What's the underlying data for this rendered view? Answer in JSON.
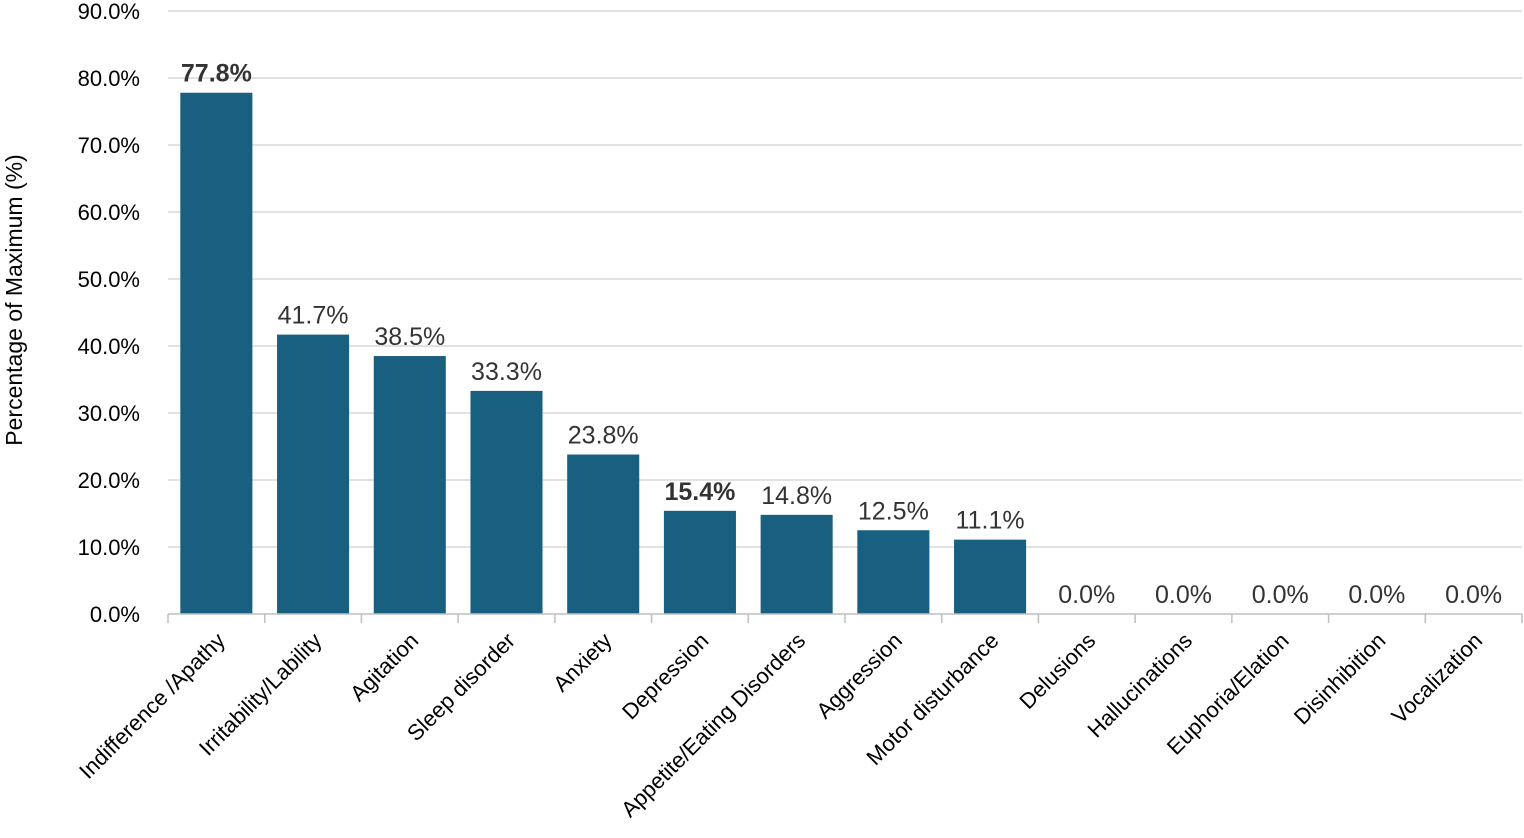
{
  "chart_data": {
    "type": "bar",
    "title": "",
    "xlabel": "",
    "ylabel": "Percentage of Maximum (%)",
    "ylim": [
      0,
      90
    ],
    "ytick_step": 10,
    "yticks": [
      "0.0%",
      "10.0%",
      "20.0%",
      "30.0%",
      "40.0%",
      "50.0%",
      "60.0%",
      "70.0%",
      "80.0%",
      "90.0%"
    ],
    "grid": "horizontal",
    "bar_color": "#185f80",
    "grid_color": "#d9d9d9",
    "categories": [
      "Indifference /Apathy",
      "Irritability/Lability",
      "Agitation",
      "Sleep disorder",
      "Anxiety",
      "Depression",
      "Appetite/Eating Disorders",
      "Aggression",
      "Motor disturbance",
      "Delusions",
      "Hallucinations",
      "Euphoria/Elation",
      "Disinhibition",
      "Vocalization"
    ],
    "values": [
      77.8,
      41.7,
      38.5,
      33.3,
      23.8,
      15.4,
      14.8,
      12.5,
      11.1,
      0.0,
      0.0,
      0.0,
      0.0,
      0.0
    ],
    "data_labels": [
      "77.8%",
      "41.7%",
      "38.5%",
      "33.3%",
      "23.8%",
      "15.4%",
      "14.8%",
      "12.5%",
      "11.1%",
      "0.0%",
      "0.0%",
      "0.0%",
      "0.0%",
      "0.0%"
    ],
    "bold_labels": [
      "77.8%",
      "15.4%"
    ]
  }
}
